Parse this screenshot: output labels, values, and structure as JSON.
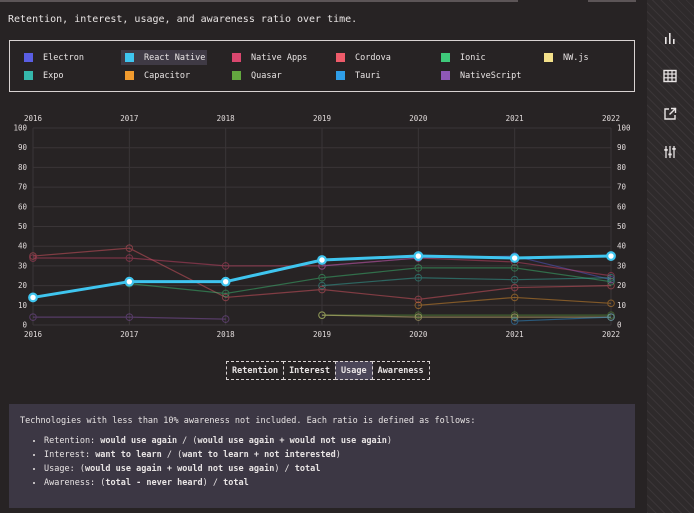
{
  "description": "Retention, interest, usage, and awareness ratio over time.",
  "legend": [
    {
      "name": "Electron",
      "color": "#5a5ee3"
    },
    {
      "name": "React Native",
      "color": "#3fc5ef"
    },
    {
      "name": "Native Apps",
      "color": "#d9476e"
    },
    {
      "name": "Cordova",
      "color": "#ee5b6a"
    },
    {
      "name": "Ionic",
      "color": "#3ec97a"
    },
    {
      "name": "NW.js",
      "color": "#f3e08a"
    },
    {
      "name": "Expo",
      "color": "#35b7ab"
    },
    {
      "name": "Capacitor",
      "color": "#f19b2e"
    },
    {
      "name": "Quasar",
      "color": "#63a83f"
    },
    {
      "name": "Tauri",
      "color": "#2f9ee8"
    },
    {
      "name": "NativeScript",
      "color": "#8f58b7"
    }
  ],
  "tabs": [
    "Retention",
    "Interest",
    "Usage",
    "Awareness"
  ],
  "active_tab": "Usage",
  "chart_data": {
    "type": "line",
    "x": [
      "2016",
      "2017",
      "2018",
      "2019",
      "2020",
      "2021",
      "2022"
    ],
    "ylim": [
      0,
      100
    ],
    "yticks": [
      0,
      10,
      20,
      30,
      40,
      50,
      60,
      70,
      80,
      90,
      100
    ],
    "highlighted": "React Native",
    "series": [
      {
        "name": "React Native",
        "values": [
          14,
          22,
          22,
          33,
          35,
          34,
          35
        ]
      },
      {
        "name": "Cordova",
        "values": [
          35,
          39,
          14,
          18,
          13,
          19,
          20
        ]
      },
      {
        "name": "Electron",
        "values": [
          null,
          null,
          null,
          30,
          34,
          35,
          23
        ]
      },
      {
        "name": "Native Apps",
        "values": [
          34,
          34,
          30,
          30,
          34,
          32,
          25
        ]
      },
      {
        "name": "Ionic",
        "values": [
          null,
          21,
          16,
          24,
          29,
          29,
          22
        ]
      },
      {
        "name": "Expo",
        "values": [
          null,
          null,
          null,
          20,
          24,
          23,
          24
        ]
      },
      {
        "name": "NativeScript",
        "values": [
          4,
          4,
          3,
          null,
          null,
          null,
          null
        ]
      },
      {
        "name": "Quasar",
        "values": [
          null,
          null,
          null,
          5,
          5,
          5,
          5
        ]
      },
      {
        "name": "Capacitor",
        "values": [
          null,
          null,
          null,
          null,
          10,
          14,
          11
        ]
      },
      {
        "name": "NW.js",
        "values": [
          null,
          null,
          null,
          5,
          4,
          4,
          4
        ]
      },
      {
        "name": "Tauri",
        "values": [
          null,
          null,
          null,
          null,
          null,
          2,
          4
        ]
      }
    ]
  },
  "notes": {
    "intro": "Technologies with less than 10% awareness not included. Each ratio is defined as follows:",
    "definitions": [
      {
        "name": "Retention",
        "formula": "would use again / (would use again + would not use again)"
      },
      {
        "name": "Interest",
        "formula": "want to learn / (want to learn + not interested)"
      },
      {
        "name": "Usage",
        "formula": "(would use again + would not use again) / total"
      },
      {
        "name": "Awareness",
        "formula": "(total - never heard) / total"
      }
    ]
  },
  "sidebar": [
    "chart-icon",
    "table-icon",
    "export-icon",
    "settings-icon"
  ]
}
